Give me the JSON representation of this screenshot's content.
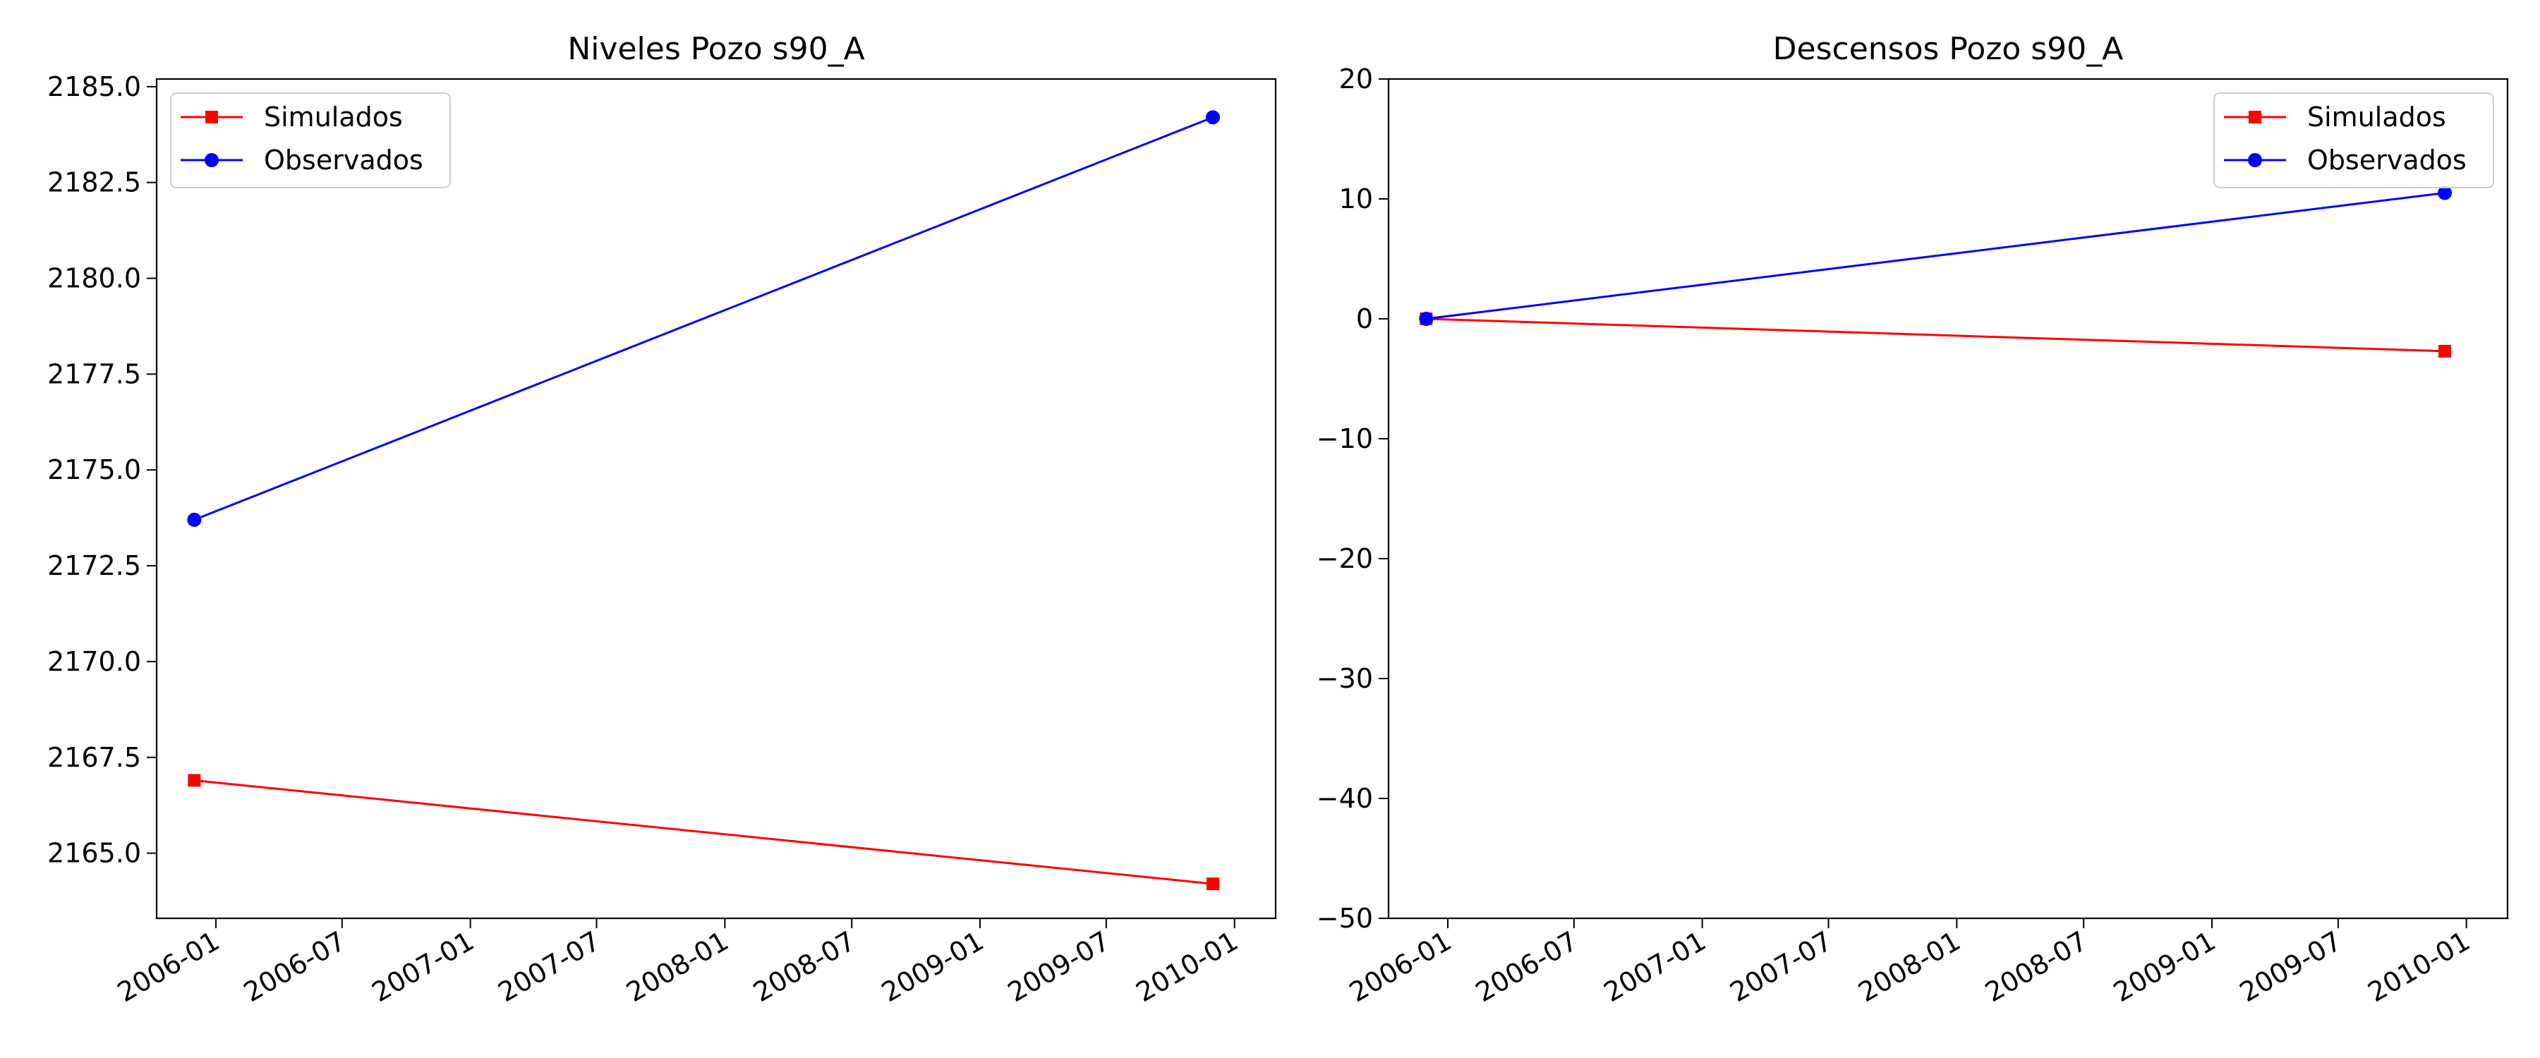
{
  "chart_data": [
    {
      "type": "line",
      "title": "Niveles Pozo s90_A",
      "xlabel": "",
      "ylabel": "",
      "xlim": [
        "2005-10-08",
        "2010-03-01"
      ],
      "ylim": [
        2163.3,
        2185.2
      ],
      "xticks": [
        "2006-01",
        "2006-07",
        "2007-01",
        "2007-07",
        "2008-01",
        "2008-07",
        "2009-01",
        "2009-07",
        "2010-01"
      ],
      "yticks": [
        "2165.0",
        "2167.5",
        "2170.0",
        "2172.5",
        "2175.0",
        "2177.5",
        "2180.0",
        "2182.5",
        "2185.0"
      ],
      "legend": "upper-left",
      "grid": false,
      "series": [
        {
          "name": "Simulados",
          "color": "#ff0000",
          "marker": "square",
          "x": [
            "2005-12-01",
            "2009-12-01"
          ],
          "y": [
            2166.9,
            2164.2
          ]
        },
        {
          "name": "Observados",
          "color": "#0000ff",
          "marker": "circle",
          "x": [
            "2005-12-01",
            "2009-12-01"
          ],
          "y": [
            2173.7,
            2184.2
          ]
        }
      ]
    },
    {
      "type": "line",
      "title": "Descensos Pozo s90_A",
      "xlabel": "",
      "ylabel": "",
      "xlim": [
        "2005-10-08",
        "2010-03-01"
      ],
      "ylim": [
        -50,
        20
      ],
      "xticks": [
        "2006-01",
        "2006-07",
        "2007-01",
        "2007-07",
        "2008-01",
        "2008-07",
        "2009-01",
        "2009-07",
        "2010-01"
      ],
      "yticks": [
        "−50",
        "−40",
        "−30",
        "−20",
        "−10",
        "0",
        "10",
        "20"
      ],
      "legend": "upper-right",
      "grid": false,
      "series": [
        {
          "name": "Simulados",
          "color": "#ff0000",
          "marker": "square",
          "x": [
            "2005-12-01",
            "2009-12-01"
          ],
          "y": [
            0,
            -2.7
          ]
        },
        {
          "name": "Observados",
          "color": "#0000ff",
          "marker": "circle",
          "x": [
            "2005-12-01",
            "2009-12-01"
          ],
          "y": [
            0,
            10.5
          ]
        }
      ]
    }
  ]
}
